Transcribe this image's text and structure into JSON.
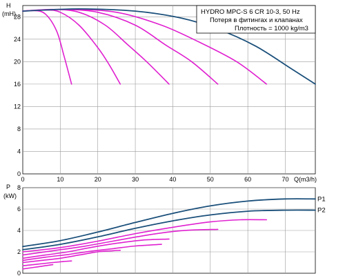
{
  "legend": {
    "title": "HYDRO MPC-S 6 CR 10-3, 50 Hz",
    "line2": "Потеря в фитингах и клапанах",
    "line3": "Плотность = 1000 kg/m3"
  },
  "colors": {
    "primary": "#1a4f7a",
    "secondary": "#e020d0",
    "grid": "#9a9a9a"
  },
  "chart_data": [
    {
      "type": "line",
      "name": "head",
      "ylabel": "H",
      "ylabel_unit": "(mH)",
      "xlabel": "Q(m3/h)",
      "xlim": [
        0,
        78
      ],
      "ylim": [
        0,
        30
      ],
      "xticks": [
        0,
        10,
        20,
        30,
        40,
        50,
        60,
        70
      ],
      "yticks": [
        0,
        4,
        8,
        12,
        16,
        20,
        24,
        28
      ],
      "grid": true,
      "series": [
        {
          "color": "secondary",
          "points": [
            [
              0,
              29.0
            ],
            [
              3,
              29.1
            ],
            [
              6,
              28.5
            ],
            [
              9,
              25.5
            ],
            [
              11,
              21.0
            ],
            [
              13,
              16.0
            ]
          ]
        },
        {
          "color": "secondary",
          "points": [
            [
              0,
              29.0
            ],
            [
              6,
              29.2
            ],
            [
              10,
              28.8
            ],
            [
              15,
              26.5
            ],
            [
              20,
              22.5
            ],
            [
              23,
              19.5
            ],
            [
              26,
              16.0
            ]
          ]
        },
        {
          "color": "secondary",
          "points": [
            [
              0,
              29.0
            ],
            [
              8,
              29.3
            ],
            [
              15,
              28.8
            ],
            [
              22,
              26.5
            ],
            [
              28,
              23.0
            ],
            [
              33,
              20.0
            ],
            [
              39,
              16.0
            ]
          ]
        },
        {
          "color": "secondary",
          "points": [
            [
              0,
              29.0
            ],
            [
              10,
              29.3
            ],
            [
              20,
              28.8
            ],
            [
              30,
              26.5
            ],
            [
              38,
              23.0
            ],
            [
              45,
              20.0
            ],
            [
              52,
              16.0
            ]
          ]
        },
        {
          "color": "secondary",
          "points": [
            [
              0,
              29.0
            ],
            [
              12,
              29.3
            ],
            [
              25,
              28.8
            ],
            [
              37,
              26.5
            ],
            [
              47,
              23.5
            ],
            [
              57,
              20.0
            ],
            [
              65,
              16.0
            ]
          ]
        },
        {
          "color": "primary",
          "points": [
            [
              0,
              29.0
            ],
            [
              15,
              29.4
            ],
            [
              30,
              29.0
            ],
            [
              42,
              27.8
            ],
            [
              52,
              25.8
            ],
            [
              62,
              22.8
            ],
            [
              71,
              19.0
            ],
            [
              78,
              16.0
            ]
          ]
        }
      ]
    },
    {
      "type": "line",
      "name": "power",
      "ylabel": "P",
      "ylabel_unit": "(kW)",
      "xlim": [
        0,
        78
      ],
      "ylim": [
        0,
        8
      ],
      "xticks": [
        0,
        10,
        20,
        30,
        40,
        50,
        60,
        70
      ],
      "yticks": [
        0,
        2,
        4,
        6,
        8
      ],
      "grid": true,
      "series": [
        {
          "color": "secondary",
          "points": [
            [
              0,
              0.7
            ],
            [
              4,
              0.85
            ],
            [
              8,
              1.0
            ],
            [
              11,
              1.1
            ],
            [
              13,
              1.15
            ]
          ]
        },
        {
          "color": "secondary",
          "points": [
            [
              0,
              1.0
            ],
            [
              5,
              1.2
            ],
            [
              10,
              1.4
            ],
            [
              15,
              1.7
            ],
            [
              20,
              2.0
            ],
            [
              24,
              2.1
            ],
            [
              26,
              2.15
            ]
          ]
        },
        {
          "color": "secondary",
          "points": [
            [
              0,
              1.4
            ],
            [
              6,
              1.7
            ],
            [
              12,
              2.0
            ],
            [
              18,
              2.4
            ],
            [
              25,
              2.8
            ],
            [
              32,
              3.1
            ],
            [
              39,
              3.2
            ]
          ]
        },
        {
          "color": "secondary",
          "points": [
            [
              0,
              1.7
            ],
            [
              8,
              2.1
            ],
            [
              16,
              2.5
            ],
            [
              24,
              3.0
            ],
            [
              32,
              3.5
            ],
            [
              40,
              3.9
            ],
            [
              46,
              4.05
            ],
            [
              52,
              4.1
            ]
          ]
        },
        {
          "color": "secondary",
          "points": [
            [
              0,
              2.0
            ],
            [
              10,
              2.4
            ],
            [
              20,
              3.0
            ],
            [
              30,
              3.7
            ],
            [
              40,
              4.3
            ],
            [
              50,
              4.8
            ],
            [
              58,
              5.0
            ],
            [
              65,
              5.0
            ]
          ]
        },
        {
          "color": "secondary",
          "points": [
            [
              0,
              1.2
            ],
            [
              6,
              1.5
            ],
            [
              12,
              1.75
            ],
            [
              18,
              2.05
            ],
            [
              24,
              2.3
            ],
            [
              30,
              2.55
            ],
            [
              37,
              2.7
            ]
          ]
        },
        {
          "color": "secondary",
          "points": [
            [
              0,
              0.4
            ],
            [
              3,
              0.55
            ],
            [
              6,
              0.7
            ],
            [
              8,
              0.8
            ]
          ]
        },
        {
          "color": "primary",
          "name": "P2",
          "points": [
            [
              0,
              2.2
            ],
            [
              10,
              2.7
            ],
            [
              20,
              3.4
            ],
            [
              30,
              4.2
            ],
            [
              40,
              4.9
            ],
            [
              50,
              5.45
            ],
            [
              60,
              5.8
            ],
            [
              70,
              5.9
            ],
            [
              78,
              5.9
            ]
          ]
        },
        {
          "color": "primary",
          "name": "P1",
          "points": [
            [
              0,
              2.5
            ],
            [
              10,
              3.05
            ],
            [
              20,
              3.85
            ],
            [
              30,
              4.75
            ],
            [
              40,
              5.6
            ],
            [
              50,
              6.3
            ],
            [
              60,
              6.75
            ],
            [
              70,
              6.95
            ],
            [
              78,
              6.95
            ]
          ]
        }
      ]
    }
  ]
}
